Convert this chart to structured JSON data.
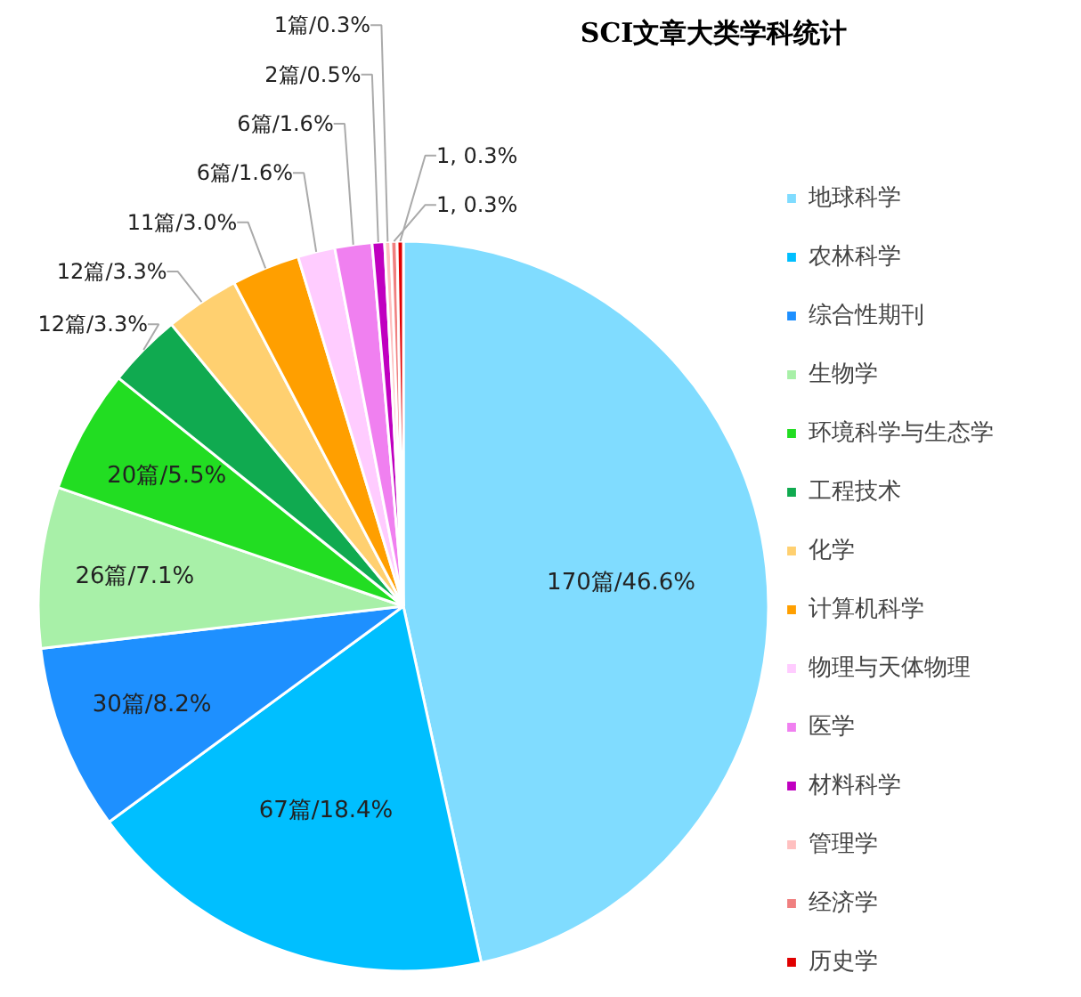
{
  "chart_data": {
    "type": "pie",
    "title": "SCI文章大类学科统计",
    "categories": [
      "地球科学",
      "农林科学",
      "综合性期刊",
      "生物学",
      "环境科学与生态学",
      "工程技术",
      "化学",
      "计算机科学",
      "物理与天体物理",
      "医学",
      "材料科学",
      "管理学",
      "经济学",
      "历史学"
    ],
    "values": [
      170,
      67,
      30,
      26,
      20,
      12,
      12,
      11,
      6,
      6,
      2,
      1,
      1,
      1
    ],
    "value_labels": [
      "170篇/46.6%",
      "67篇/18.4%",
      "30篇/8.2%",
      "26篇/7.1%",
      "20篇/5.5%",
      "12篇/3.3%",
      "12篇/3.3%",
      "11篇/3.0%",
      "6篇/1.6%",
      "6篇/1.6%",
      "2篇/0.5%",
      "1篇/0.3%",
      "1, 0.3%",
      "1, 0.3%"
    ],
    "colors": [
      "#80dcff",
      "#00bfff",
      "#1e90ff",
      "#a8f0a8",
      "#22dd22",
      "#10aa50",
      "#ffd070",
      "#ff9f00",
      "#ffccff",
      "#f080f0",
      "#c000c0",
      "#ffc0c0",
      "#f08080",
      "#e00000"
    ],
    "legend": "right"
  }
}
